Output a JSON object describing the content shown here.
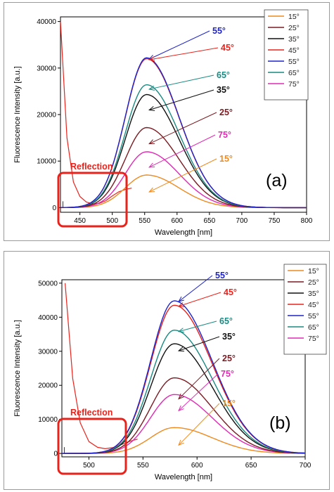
{
  "chart_data": [
    {
      "type": "line",
      "panel_label": "(a)",
      "xlabel": "Wavelength [nm]",
      "ylabel": "Fluorescence Intensity [a.u.]",
      "xlim": [
        420,
        800
      ],
      "ylim": [
        -1000,
        41000
      ],
      "xticks": [
        450,
        500,
        550,
        600,
        650,
        700,
        750,
        800
      ],
      "xtick_labels": [
        "450",
        "500",
        "550",
        "600",
        "650",
        "700",
        "750",
        "800"
      ],
      "yticks": [
        0,
        10000,
        20000,
        30000,
        40000
      ],
      "ytick_labels": [
        "0",
        "10000",
        "20000",
        "30000",
        "40000"
      ],
      "grid": false,
      "legend_position": "top-right",
      "series": [
        {
          "name": "15°",
          "color": "#ee8a1f",
          "peak_x": 553,
          "peak_y": 7000
        },
        {
          "name": "25°",
          "color": "#7b1b22",
          "peak_x": 553,
          "peak_y": 17200
        },
        {
          "name": "35°",
          "color": "#111111",
          "peak_x": 553,
          "peak_y": 24300
        },
        {
          "name": "45°",
          "color": "#e8231c",
          "peak_x": 553,
          "peak_y": 32000
        },
        {
          "name": "55°",
          "color": "#1f24c8",
          "peak_x": 553,
          "peak_y": 32200
        },
        {
          "name": "65°",
          "color": "#1a8a82",
          "peak_x": 553,
          "peak_y": 26400
        },
        {
          "name": "75°",
          "color": "#e02ab5",
          "peak_x": 553,
          "peak_y": 12000
        }
      ],
      "reflection_curve": {
        "x": [
          420,
          430,
          440,
          450,
          460,
          470,
          480,
          490,
          500,
          510,
          520,
          530
        ],
        "y": [
          40000,
          15000,
          5500,
          2400,
          1200,
          800,
          900,
          1500,
          2500,
          3400,
          3900,
          4200
        ]
      },
      "annotations": [
        {
          "text": "55°",
          "color": "#1f24c8"
        },
        {
          "text": "45°",
          "color": "#e8231c"
        },
        {
          "text": "65°",
          "color": "#1a8a82"
        },
        {
          "text": "35°",
          "color": "#111111"
        },
        {
          "text": "25°",
          "color": "#7b1b22"
        },
        {
          "text": "75°",
          "color": "#e02ab5"
        },
        {
          "text": "15°",
          "color": "#ee8a1f"
        }
      ],
      "reflection_label": "Reflection"
    },
    {
      "type": "line",
      "panel_label": "(b)",
      "xlabel": "Wavelength [nm]",
      "ylabel": "Fluorescence Intensity [a.u.]",
      "xlim": [
        475,
        700
      ],
      "ylim": [
        -1000,
        51000
      ],
      "xticks": [
        500,
        550,
        600,
        650,
        700
      ],
      "xtick_labels": [
        "500",
        "550",
        "600",
        "650",
        "700"
      ],
      "yticks": [
        0,
        10000,
        20000,
        30000,
        40000,
        50000
      ],
      "ytick_labels": [
        "0",
        "10000",
        "20000",
        "30000",
        "40000",
        "50000"
      ],
      "grid": false,
      "legend_position": "top-right",
      "series": [
        {
          "name": "15°",
          "color": "#ee8a1f",
          "peak_x": 579,
          "peak_y": 7600
        },
        {
          "name": "25°",
          "color": "#7b1b22",
          "peak_x": 579,
          "peak_y": 22200
        },
        {
          "name": "35°",
          "color": "#111111",
          "peak_x": 579,
          "peak_y": 32200
        },
        {
          "name": "45°",
          "color": "#e8231c",
          "peak_x": 579,
          "peak_y": 43500
        },
        {
          "name": "55°",
          "color": "#1f24c8",
          "peak_x": 579,
          "peak_y": 44800
        },
        {
          "name": "65°",
          "color": "#1a8a82",
          "peak_x": 579,
          "peak_y": 36200
        },
        {
          "name": "75°",
          "color": "#e02ab5",
          "peak_x": 579,
          "peak_y": 17300
        }
      ],
      "reflection_curve": {
        "x": [
          478,
          485,
          492,
          500,
          508,
          515,
          522,
          530,
          538,
          545
        ],
        "y": [
          50000,
          22000,
          9000,
          3500,
          1800,
          1400,
          1700,
          2600,
          3600,
          4200
        ]
      },
      "annotations": [
        {
          "text": "55°",
          "color": "#1f24c8"
        },
        {
          "text": "45°",
          "color": "#e8231c"
        },
        {
          "text": "65°",
          "color": "#1a8a82"
        },
        {
          "text": "35°",
          "color": "#111111"
        },
        {
          "text": "25°",
          "color": "#7b1b22"
        },
        {
          "text": "75°",
          "color": "#e02ab5"
        },
        {
          "text": "15°",
          "color": "#ee8a1f"
        }
      ],
      "reflection_label": "Reflection"
    }
  ]
}
